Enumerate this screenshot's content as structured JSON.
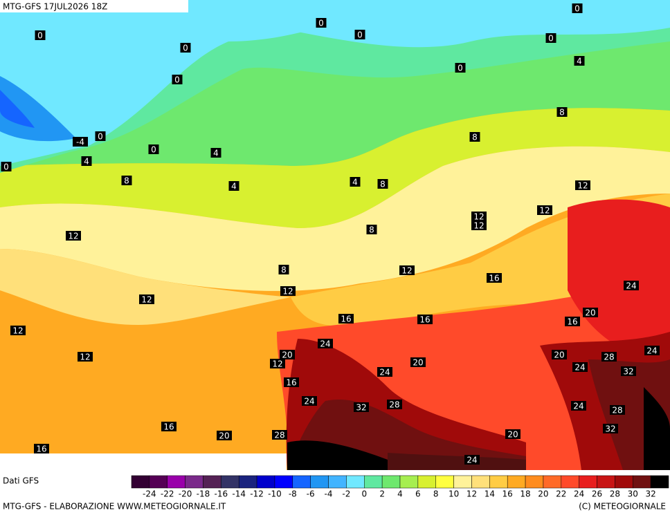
{
  "header": {
    "title": "MTG-GFS 17JUL2026 18Z"
  },
  "map": {
    "contour_labels": [
      "0",
      "0",
      "0",
      "0",
      "-4",
      "0",
      "4",
      "0",
      "0",
      "0",
      "0",
      "0",
      "0",
      "4",
      "8",
      "8",
      "4",
      "4",
      "4",
      "8",
      "8",
      "12",
      "12",
      "12",
      "12",
      "8",
      "12",
      "8",
      "12",
      "16",
      "12",
      "12",
      "24",
      "16",
      "16",
      "16",
      "20",
      "12",
      "24",
      "20",
      "12",
      "12",
      "20",
      "24",
      "28",
      "20",
      "24",
      "32",
      "24",
      "16",
      "24",
      "32",
      "28",
      "24",
      "28",
      "16",
      "32",
      "20",
      "28",
      "20",
      "24",
      "16"
    ]
  },
  "legend": {
    "source": "Dati GFS",
    "colors": [
      "#330033",
      "#550055",
      "#9900aa",
      "#7a2a8a",
      "#552255",
      "#333366",
      "#1a237e",
      "#0000cc",
      "#0000ff",
      "#1565ff",
      "#2196f3",
      "#42b4ff",
      "#70e8ff",
      "#5fe8a0",
      "#6ee86e",
      "#a6ee50",
      "#d8f030",
      "#ffff40",
      "#fff29a",
      "#ffe07a",
      "#ffcc44",
      "#ffaa22",
      "#ff8c1e",
      "#ff6a28",
      "#ff4a2a",
      "#e81e1e",
      "#c81414",
      "#a00a0a",
      "#701010",
      "#000000"
    ],
    "ticks": [
      -24,
      -22,
      -20,
      -18,
      -16,
      -14,
      -12,
      -10,
      -8,
      -6,
      -4,
      -2,
      0,
      2,
      4,
      6,
      8,
      10,
      12,
      14,
      16,
      18,
      20,
      22,
      24,
      26,
      28,
      30,
      32
    ]
  },
  "footer": {
    "left": "MTG-GFS - ELABORAZIONE WWW.METEOGIORNALE.IT",
    "right": "(C) METEOGIORNALE"
  }
}
